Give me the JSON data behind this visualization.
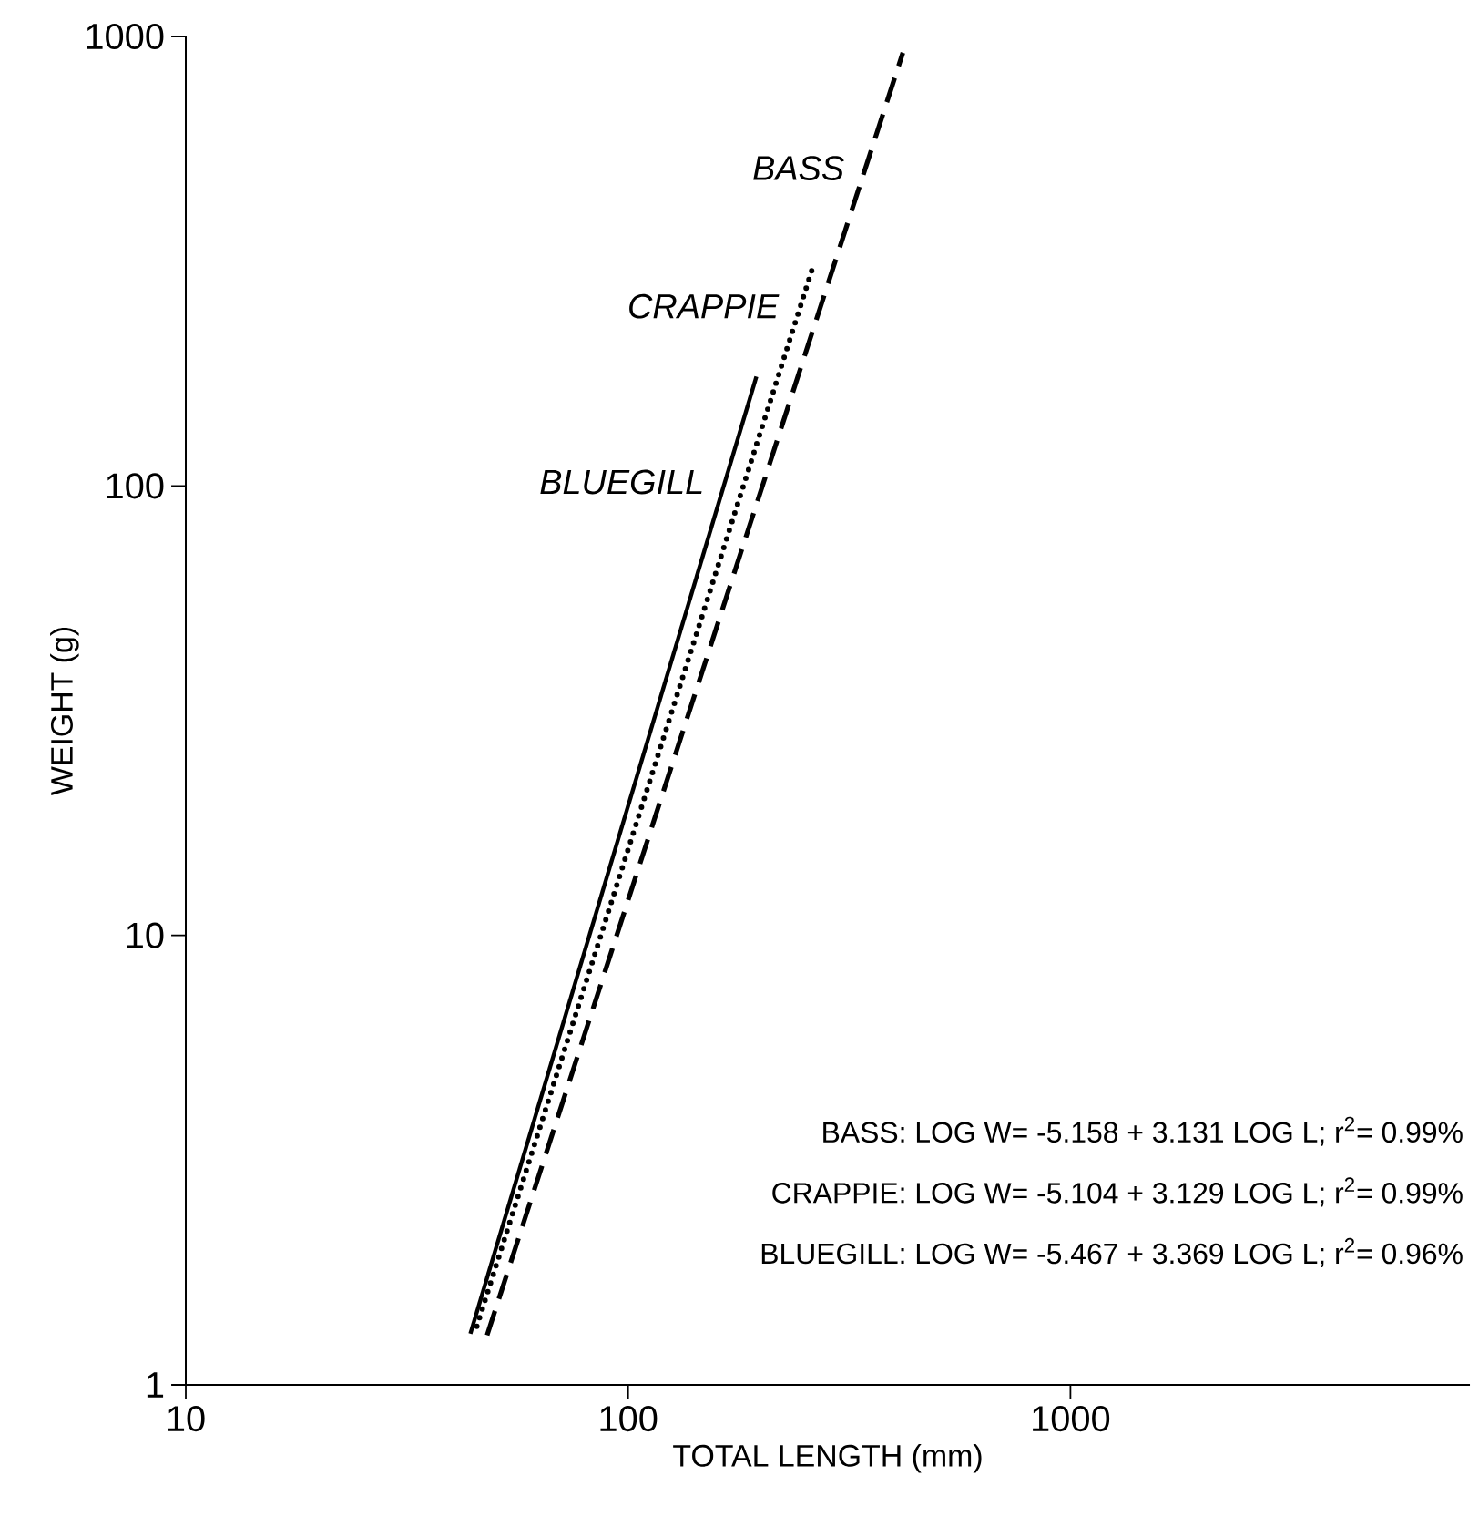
{
  "chart_data": {
    "type": "line",
    "xlabel": "TOTAL LENGTH (mm)",
    "ylabel": "WEIGHT (g)",
    "log": "xy",
    "xlim": [
      10,
      8000
    ],
    "ylim": [
      1,
      1000
    ],
    "xticks": [
      10,
      100,
      1000
    ],
    "yticks": [
      1,
      10,
      100,
      1000
    ],
    "series": [
      {
        "name": "BASS",
        "color": "#000000",
        "line_style": "dashed",
        "x": [
          48,
          418
        ],
        "values": [
          1.29,
          920
        ]
      },
      {
        "name": "CRAPPIE",
        "color": "#000000",
        "line_style": "dotted",
        "x": [
          45.5,
          263
        ],
        "values": [
          1.35,
          312
        ]
      },
      {
        "name": "BLUEGILL",
        "color": "#000000",
        "line_style": "solid",
        "x": [
          44,
          195
        ],
        "values": [
          1.3,
          175
        ]
      }
    ],
    "annotations": [
      "BASS: LOG W= -5.158 + 3.131 LOG L; r$^{2}$= 0.99%",
      "CRAPPIE: LOG W= -5.104 + 3.129 LOG L; r$^{2}$= 0.99%",
      "BLUEGILL: LOG W= -5.467 + 3.369 LOG L; r$^{2}$= 0.96%"
    ]
  }
}
